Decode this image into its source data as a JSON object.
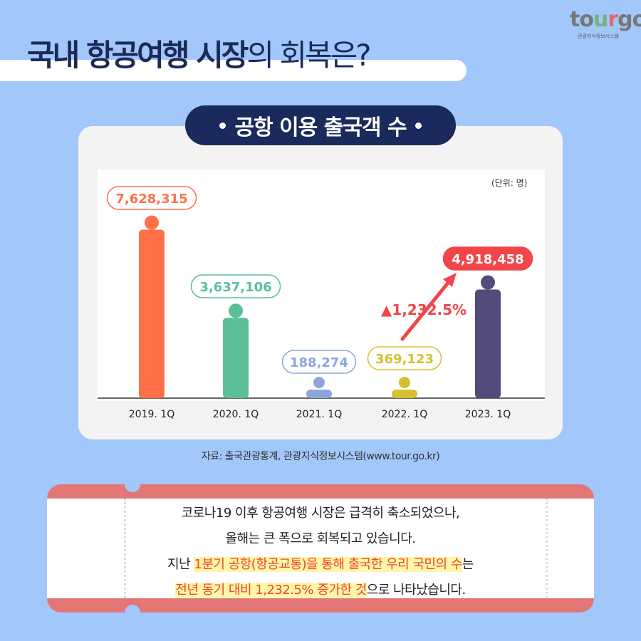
{
  "logo": {
    "text": "tourgo",
    "subtitle": "관광지식정보시스템"
  },
  "header": {
    "title_bold": "국내 항공여행 시장",
    "title_light": "의 회복은?"
  },
  "chart_data": {
    "type": "bar",
    "title": "공항 이용 출국객 수",
    "unit_label": "(단위: 명)",
    "categories": [
      "2019. 1Q",
      "2020. 1Q",
      "2021. 1Q",
      "2022. 1Q",
      "2023. 1Q"
    ],
    "values": [
      7628315,
      3637106,
      188274,
      369123,
      4918458
    ],
    "data_labels": [
      "7,628,315",
      "3,637,106",
      "188,274",
      "369,123",
      "4,918,458"
    ],
    "colors": [
      "#ff7049",
      "#5bbf98",
      "#8ea5dc",
      "#d5c02e",
      "#544b7c"
    ],
    "annotation": "▲1,232.5%",
    "annotation_color": "#f2454a",
    "ylim": [
      0,
      10000000
    ],
    "grid": false,
    "legend": "none"
  },
  "source": "자료: 출국관광통계, 관광지식정보시스템(www.tour.go.kr)",
  "message": {
    "line1": "코로나19 이후 항공여행 시장은 급격히 축소되었으나,",
    "line2": "올해는 큰 폭으로 회복되고 있습니다.",
    "line3_a": "지난 ",
    "line3_hl": "1분기 공항(항공교통)을 통해 출국한 우리 국민의 수",
    "line3_b": "는",
    "line4_hl": "전년 동기 대비 1,232.5% 증가한 것",
    "line4_b": "으로 나타났습니다."
  }
}
